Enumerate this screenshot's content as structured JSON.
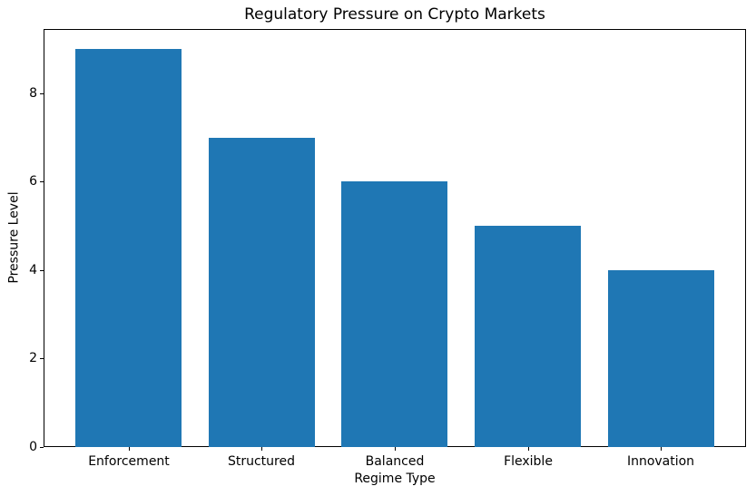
{
  "chart_data": {
    "type": "bar",
    "title": "Regulatory Pressure on Crypto Markets",
    "xlabel": "Regime Type",
    "ylabel": "Pressure Level",
    "categories": [
      "Enforcement",
      "Structured",
      "Balanced",
      "Flexible",
      "Innovation"
    ],
    "values": [
      9,
      7,
      6,
      5,
      4
    ],
    "yticks": [
      0,
      2,
      4,
      6,
      8
    ],
    "ylim": [
      0,
      9.45
    ],
    "bar_color": "#1f77b4",
    "bar_width_fraction": 0.8,
    "grid": false,
    "legend_position": "none"
  }
}
